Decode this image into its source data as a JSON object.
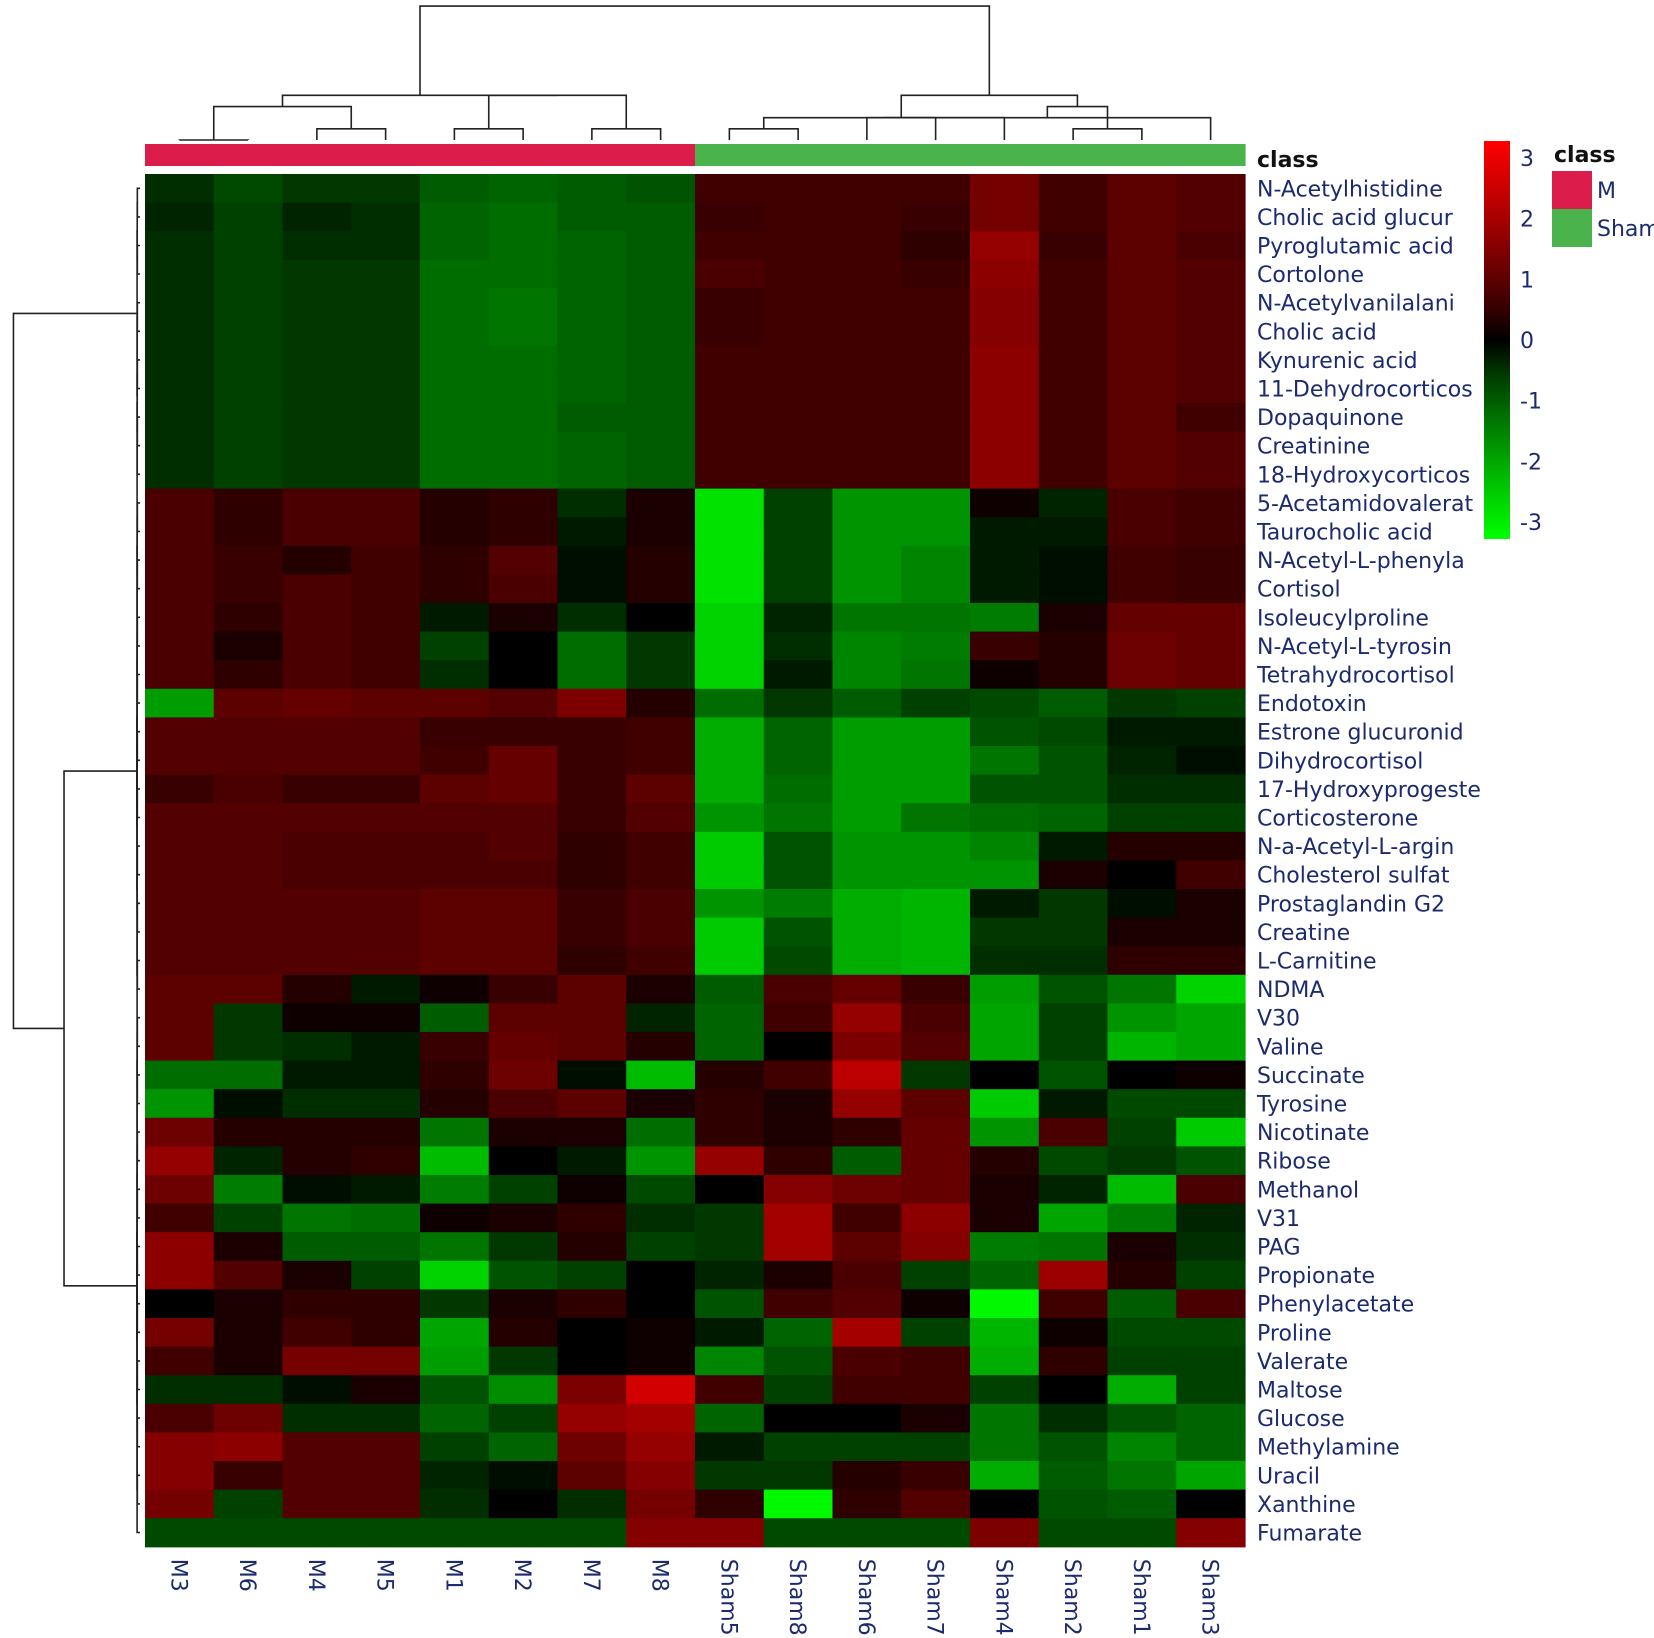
{
  "chart_data": {
    "type": "heatmap",
    "class_label": "class",
    "legend": {
      "title": "class",
      "entries": [
        {
          "label": "M",
          "color": "#dc1c4b"
        },
        {
          "label": "Sham",
          "color": "#4bb34b"
        }
      ]
    },
    "color_scale": {
      "min": -3,
      "max": 3,
      "low_color": "#00ff00",
      "mid_color": "#000000",
      "high_color": "#ff0000",
      "ticks": [
        "3",
        "2",
        "1",
        "0",
        "-1",
        "-2",
        "-3"
      ]
    },
    "columns": [
      {
        "name": "M3",
        "class": "M"
      },
      {
        "name": "M6",
        "class": "M"
      },
      {
        "name": "M4",
        "class": "M"
      },
      {
        "name": "M5",
        "class": "M"
      },
      {
        "name": "M1",
        "class": "M"
      },
      {
        "name": "M2",
        "class": "M"
      },
      {
        "name": "M7",
        "class": "M"
      },
      {
        "name": "M8",
        "class": "M"
      },
      {
        "name": "Sham5",
        "class": "Sham"
      },
      {
        "name": "Sham8",
        "class": "Sham"
      },
      {
        "name": "Sham6",
        "class": "Sham"
      },
      {
        "name": "Sham7",
        "class": "Sham"
      },
      {
        "name": "Sham4",
        "class": "Sham"
      },
      {
        "name": "Sham2",
        "class": "Sham"
      },
      {
        "name": "Sham1",
        "class": "Sham"
      },
      {
        "name": "Sham3",
        "class": "Sham"
      }
    ],
    "rows": [
      "N-Acetylhistidine",
      "Cholic acid glucur",
      "Pyroglutamic acid",
      "Cortolone",
      "N-Acetylvanilalani",
      "Cholic acid",
      "Kynurenic acid",
      "11-Dehydrocorticos",
      "Dopaquinone",
      "Creatinine",
      "18-Hydroxycorticos",
      "5-Acetamidovalerat",
      "Taurocholic acid",
      "N-Acetyl-L-phenyla",
      "Cortisol",
      "Isoleucylproline",
      "N-Acetyl-L-tyrosin",
      "Tetrahydrocortisol",
      "Endotoxin",
      "Estrone glucuronid",
      "Dihydrocortisol",
      "17-Hydroxyprogeste",
      "Corticosterone",
      "N-a-Acetyl-L-argin",
      "Cholesterol sulfat",
      "Prostaglandin G2",
      "Creatine",
      "L-Carnitine",
      "NDMA",
      "V30",
      "Valine",
      "Succinate",
      "Tyrosine",
      "Nicotinate",
      "Ribose",
      "Methanol",
      "V31",
      "PAG",
      "Propionate",
      "Phenylacetate",
      "Proline",
      "Valerate",
      "Maltose",
      "Glucose",
      "Methylamine",
      "Uracil",
      "Xanthine",
      "Fumarate"
    ],
    "values": [
      [
        -0.4,
        -0.7,
        -0.5,
        -0.5,
        -0.9,
        -1.0,
        -0.9,
        -0.8,
        0.6,
        0.6,
        0.6,
        0.6,
        1.2,
        0.6,
        0.9,
        0.8
      ],
      [
        -0.3,
        -0.6,
        -0.3,
        -0.4,
        -1.0,
        -1.1,
        -0.9,
        -0.9,
        0.5,
        0.6,
        0.6,
        0.5,
        1.2,
        0.6,
        0.9,
        0.8
      ],
      [
        -0.4,
        -0.6,
        -0.4,
        -0.4,
        -1.0,
        -1.1,
        -1.0,
        -0.9,
        0.6,
        0.6,
        0.6,
        0.4,
        1.6,
        0.5,
        0.9,
        0.7
      ],
      [
        -0.4,
        -0.6,
        -0.5,
        -0.5,
        -1.1,
        -1.1,
        -1.0,
        -0.9,
        0.7,
        0.6,
        0.6,
        0.5,
        1.5,
        0.6,
        0.9,
        0.8
      ],
      [
        -0.4,
        -0.6,
        -0.5,
        -0.5,
        -1.1,
        -1.2,
        -1.0,
        -0.9,
        0.5,
        0.6,
        0.6,
        0.6,
        1.4,
        0.6,
        0.9,
        0.8
      ],
      [
        -0.4,
        -0.6,
        -0.5,
        -0.5,
        -1.1,
        -1.2,
        -1.0,
        -0.9,
        0.5,
        0.6,
        0.6,
        0.6,
        1.4,
        0.6,
        0.9,
        0.8
      ],
      [
        -0.4,
        -0.6,
        -0.5,
        -0.5,
        -1.1,
        -1.1,
        -1.0,
        -0.9,
        0.6,
        0.6,
        0.6,
        0.6,
        1.5,
        0.6,
        0.9,
        0.8
      ],
      [
        -0.4,
        -0.6,
        -0.5,
        -0.5,
        -1.1,
        -1.1,
        -1.0,
        -0.9,
        0.6,
        0.6,
        0.6,
        0.6,
        1.5,
        0.6,
        0.9,
        0.8
      ],
      [
        -0.4,
        -0.6,
        -0.5,
        -0.5,
        -1.1,
        -1.1,
        -0.9,
        -0.9,
        0.6,
        0.6,
        0.6,
        0.6,
        1.5,
        0.6,
        0.9,
        0.6
      ],
      [
        -0.4,
        -0.6,
        -0.5,
        -0.5,
        -1.1,
        -1.1,
        -1.0,
        -0.9,
        0.6,
        0.6,
        0.6,
        0.6,
        1.5,
        0.6,
        0.9,
        0.8
      ],
      [
        -0.4,
        -0.6,
        -0.5,
        -0.5,
        -1.1,
        -1.1,
        -1.0,
        -0.9,
        0.6,
        0.6,
        0.6,
        0.6,
        1.5,
        0.6,
        0.9,
        0.8
      ],
      [
        0.7,
        0.4,
        0.7,
        0.7,
        0.3,
        0.4,
        -0.4,
        0.2,
        -2.6,
        -0.6,
        -1.6,
        -1.6,
        0.1,
        -0.3,
        0.7,
        0.6
      ],
      [
        0.7,
        0.4,
        0.7,
        0.7,
        0.3,
        0.4,
        -0.2,
        0.2,
        -2.6,
        -0.6,
        -1.6,
        -1.6,
        -0.2,
        -0.2,
        0.7,
        0.6
      ],
      [
        0.7,
        0.5,
        0.3,
        0.6,
        0.4,
        0.8,
        -0.1,
        0.3,
        -2.6,
        -0.6,
        -1.6,
        -1.4,
        -0.2,
        -0.1,
        0.6,
        0.5
      ],
      [
        0.7,
        0.5,
        0.7,
        0.6,
        0.4,
        0.7,
        -0.1,
        0.3,
        -2.6,
        -0.6,
        -1.6,
        -1.4,
        -0.2,
        -0.1,
        0.6,
        0.5
      ],
      [
        0.7,
        0.4,
        0.7,
        0.6,
        -0.2,
        0.2,
        -0.4,
        0.0,
        -2.4,
        -0.3,
        -1.2,
        -1.2,
        -1.3,
        0.2,
        1.0,
        1.0
      ],
      [
        0.7,
        0.2,
        0.7,
        0.6,
        -0.6,
        0.0,
        -1.1,
        -0.5,
        -2.4,
        -0.4,
        -1.4,
        -1.3,
        0.5,
        0.3,
        1.1,
        1.0
      ],
      [
        0.7,
        0.4,
        0.7,
        0.6,
        -0.4,
        0.0,
        -1.1,
        -0.5,
        -2.4,
        -0.2,
        -1.4,
        -1.2,
        0.1,
        0.3,
        1.1,
        1.0
      ],
      [
        -1.7,
        0.9,
        1.0,
        0.9,
        0.9,
        0.8,
        1.3,
        0.3,
        -1.1,
        -0.5,
        -0.9,
        -0.6,
        -0.7,
        -0.9,
        -0.5,
        -0.6
      ],
      [
        0.8,
        0.8,
        0.8,
        0.8,
        0.5,
        0.5,
        0.5,
        0.6,
        -1.9,
        -1.0,
        -1.7,
        -1.7,
        -0.8,
        -0.7,
        -0.2,
        -0.2
      ],
      [
        0.8,
        0.8,
        0.8,
        0.8,
        0.6,
        1.0,
        0.5,
        0.6,
        -1.9,
        -1.0,
        -1.7,
        -1.7,
        -1.2,
        -0.8,
        -0.3,
        -0.1
      ],
      [
        0.5,
        0.7,
        0.5,
        0.5,
        0.9,
        1.0,
        0.5,
        0.9,
        -1.9,
        -1.1,
        -1.7,
        -1.7,
        -0.8,
        -0.8,
        -0.4,
        -0.4
      ],
      [
        0.8,
        0.8,
        0.8,
        0.8,
        0.8,
        0.8,
        0.5,
        0.8,
        -1.6,
        -1.2,
        -1.7,
        -1.2,
        -1.1,
        -1.0,
        -0.6,
        -0.6
      ],
      [
        0.8,
        0.8,
        0.7,
        0.7,
        0.7,
        0.8,
        0.4,
        0.6,
        -2.3,
        -0.8,
        -1.6,
        -1.6,
        -1.4,
        -0.2,
        0.3,
        0.3
      ],
      [
        0.8,
        0.8,
        0.7,
        0.7,
        0.7,
        0.7,
        0.4,
        0.6,
        -2.3,
        -0.8,
        -1.6,
        -1.6,
        -1.6,
        0.2,
        0.0,
        0.6
      ],
      [
        0.8,
        0.8,
        0.8,
        0.8,
        0.9,
        0.9,
        0.5,
        0.7,
        -1.6,
        -1.3,
        -1.9,
        -2.0,
        -0.2,
        -0.5,
        -0.1,
        0.2
      ],
      [
        0.8,
        0.8,
        0.8,
        0.8,
        0.9,
        0.9,
        0.5,
        0.7,
        -2.3,
        -0.8,
        -1.9,
        -2.0,
        -0.5,
        -0.5,
        0.2,
        0.2
      ],
      [
        0.8,
        0.8,
        0.8,
        0.8,
        0.9,
        0.9,
        0.4,
        0.6,
        -2.3,
        -0.7,
        -1.9,
        -2.0,
        -0.4,
        -0.4,
        0.4,
        0.4
      ],
      [
        0.9,
        0.9,
        0.3,
        -0.2,
        0.1,
        0.5,
        0.9,
        0.2,
        -0.9,
        0.7,
        1.0,
        0.5,
        -1.7,
        -0.8,
        -1.2,
        -2.4
      ],
      [
        0.9,
        -0.5,
        0.1,
        0.1,
        -0.9,
        0.9,
        0.9,
        -0.3,
        -1.0,
        0.6,
        1.6,
        0.7,
        -1.8,
        -0.6,
        -1.6,
        -1.8
      ],
      [
        0.9,
        -0.5,
        -0.4,
        -0.2,
        0.5,
        1.0,
        0.9,
        0.3,
        -1.0,
        0.0,
        1.3,
        0.8,
        -1.8,
        -0.6,
        -2.0,
        -1.8
      ],
      [
        -1.1,
        -1.1,
        -0.2,
        -0.2,
        0.4,
        1.1,
        -0.1,
        -2.1,
        0.3,
        0.6,
        2.1,
        -0.5,
        0.0,
        -0.8,
        0.0,
        0.1
      ],
      [
        -1.6,
        -0.1,
        -0.4,
        -0.4,
        0.3,
        0.7,
        0.9,
        0.2,
        0.4,
        0.2,
        1.6,
        0.9,
        -2.3,
        -0.2,
        -0.7,
        -0.7
      ],
      [
        1.1,
        0.3,
        0.3,
        0.3,
        -1.2,
        0.2,
        0.2,
        -1.1,
        0.4,
        0.2,
        0.4,
        1.0,
        -1.6,
        0.7,
        -0.6,
        -2.3
      ],
      [
        1.6,
        -0.3,
        0.3,
        0.4,
        -2.1,
        0.0,
        -0.2,
        -1.6,
        1.6,
        0.4,
        -0.9,
        1.0,
        0.3,
        -0.7,
        -0.5,
        -0.8
      ],
      [
        1.1,
        -1.3,
        -0.1,
        -0.2,
        -1.3,
        -0.6,
        0.1,
        -0.7,
        0.0,
        1.4,
        1.1,
        1.0,
        0.2,
        -0.3,
        -2.1,
        0.7
      ],
      [
        0.6,
        -0.6,
        -1.2,
        -1.1,
        0.1,
        0.2,
        0.4,
        -0.4,
        -0.5,
        1.8,
        0.6,
        1.5,
        0.2,
        -1.8,
        -1.3,
        -0.3
      ],
      [
        1.5,
        0.2,
        -0.9,
        -0.9,
        -1.2,
        -0.5,
        0.3,
        -0.6,
        -0.5,
        1.8,
        0.9,
        1.4,
        -1.3,
        -1.2,
        0.2,
        -0.4
      ],
      [
        1.5,
        0.8,
        0.2,
        -0.6,
        -2.4,
        -0.8,
        -0.6,
        0.0,
        -0.3,
        0.2,
        0.7,
        -0.6,
        -1.0,
        1.7,
        0.3,
        -0.6
      ],
      [
        0.0,
        0.2,
        0.4,
        0.4,
        -0.5,
        0.2,
        0.4,
        0.0,
        -0.8,
        0.6,
        0.8,
        0.1,
        -2.9,
        0.6,
        -0.9,
        0.7
      ],
      [
        1.2,
        0.2,
        0.6,
        0.4,
        -1.8,
        0.3,
        0.0,
        0.1,
        -0.2,
        -1.0,
        1.8,
        -0.6,
        -2.0,
        0.1,
        -0.7,
        -0.7
      ],
      [
        0.6,
        0.2,
        1.2,
        1.2,
        -1.7,
        -0.5,
        0.0,
        0.1,
        -1.4,
        -0.8,
        0.7,
        0.6,
        -1.9,
        0.4,
        -0.6,
        -0.6
      ],
      [
        -0.4,
        -0.4,
        -0.1,
        0.2,
        -0.8,
        -1.5,
        1.3,
        2.4,
        0.6,
        -0.6,
        0.6,
        0.6,
        -0.6,
        0.0,
        -1.9,
        -0.6
      ],
      [
        0.7,
        1.1,
        -0.4,
        -0.4,
        -1.0,
        -0.6,
        1.6,
        1.8,
        -1.0,
        0.0,
        0.0,
        0.2,
        -1.2,
        -0.4,
        -0.8,
        -1.0
      ],
      [
        1.4,
        1.5,
        0.8,
        0.8,
        -0.6,
        -1.0,
        1.1,
        1.6,
        -0.2,
        -0.6,
        -0.6,
        -0.6,
        -1.2,
        -0.8,
        -1.4,
        -1.0
      ],
      [
        1.4,
        0.5,
        0.8,
        0.8,
        -0.3,
        -0.1,
        0.9,
        1.4,
        -0.5,
        -0.5,
        0.3,
        0.5,
        -1.9,
        -0.9,
        -1.2,
        -1.8
      ],
      [
        1.2,
        -0.6,
        0.8,
        0.8,
        -0.4,
        0.0,
        -0.4,
        1.2,
        0.4,
        -2.9,
        0.4,
        0.8,
        0.0,
        -0.8,
        -0.9,
        0.0
      ],
      [
        -0.7,
        -0.7,
        -0.7,
        -0.7,
        -0.7,
        -0.7,
        -0.7,
        1.4,
        1.4,
        -0.7,
        -0.7,
        -0.7,
        1.3,
        -0.7,
        -0.7,
        1.4
      ]
    ],
    "column_dendrogram": [
      [
        0,
        1,
        0
      ],
      [
        2,
        3,
        1
      ],
      [
        4,
        5,
        1
      ],
      [
        6,
        7,
        1
      ],
      [
        16,
        17,
        3
      ],
      [
        18,
        19,
        4
      ],
      [
        20,
        21,
        4
      ],
      [
        8,
        9,
        1
      ],
      [
        10,
        11,
        2
      ],
      [
        23,
        12,
        2
      ],
      [
        13,
        14,
        1
      ],
      [
        15,
        25,
        1
      ],
      [
        26,
        27,
        3
      ],
      [
        24,
        28,
        4
      ],
      [
        22,
        29,
        12
      ]
    ],
    "row_dendrogram": [
      [
        0,
        1,
        0.02
      ],
      [
        2,
        3,
        0.02
      ],
      [
        4,
        5,
        0.02
      ],
      [
        6,
        7,
        0.02
      ],
      [
        8,
        9,
        0.02
      ],
      [
        50,
        10,
        0.02
      ],
      [
        48,
        49,
        0.02
      ],
      [
        51,
        52,
        0.02
      ],
      [
        53,
        54,
        0.02
      ],
      [
        55,
        47,
        0.02
      ],
      [
        11,
        12,
        0.02
      ],
      [
        13,
        14,
        0.02
      ],
      [
        15,
        16,
        0.02
      ],
      [
        17,
        18,
        0.02
      ],
      [
        19,
        20,
        0.02
      ],
      [
        21,
        22,
        0.02
      ],
      [
        23,
        24,
        0.02
      ],
      [
        25,
        26,
        0.02
      ],
      [
        27,
        28,
        0.02
      ],
      [
        58,
        59,
        0.02
      ],
      [
        60,
        61,
        0.02
      ],
      [
        62,
        63,
        0.02
      ],
      [
        64,
        65,
        0.02
      ],
      [
        66,
        67,
        0.02
      ],
      [
        68,
        69,
        0.02
      ],
      [
        70,
        71,
        0.02
      ],
      [
        72,
        73,
        0.02
      ],
      [
        29,
        30,
        0.02
      ],
      [
        31,
        32,
        0.02
      ],
      [
        33,
        34,
        0.02
      ],
      [
        35,
        36,
        0.02
      ],
      [
        37,
        38,
        0.02
      ],
      [
        39,
        40,
        0.02
      ],
      [
        41,
        42,
        0.02
      ],
      [
        43,
        44,
        0.02
      ],
      [
        45,
        46,
        0.02
      ],
      [
        75,
        76,
        0.02
      ],
      [
        77,
        78,
        0.02
      ],
      [
        79,
        80,
        0.02
      ],
      [
        81,
        82,
        0.02
      ],
      [
        83,
        84,
        0.02
      ],
      [
        85,
        86,
        0.02
      ],
      [
        87,
        88,
        0.02
      ],
      [
        89,
        90,
        0.02
      ],
      [
        74,
        91,
        0.6
      ],
      [
        56,
        92,
        1.0
      ]
    ]
  }
}
